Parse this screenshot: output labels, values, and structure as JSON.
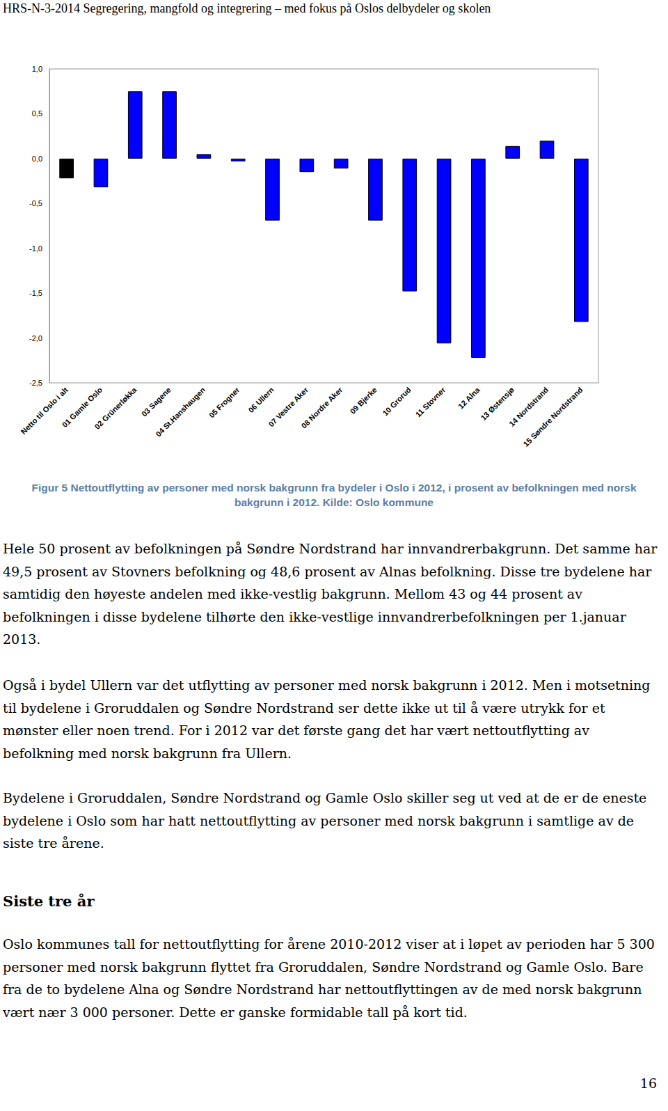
{
  "header": "HRS-N-3-2014 Segregering, mangfold og integrering – med fokus på Oslos delbydeler og skolen",
  "chart_data": {
    "type": "bar",
    "categories": [
      "Netto til Oslo i alt",
      "01 Gamle Oslo",
      "02 Grünerløkka",
      "03 Sagene",
      "04 St.Hanshaugen",
      "05 Frogner",
      "06 Ullern",
      "07 Vestre Aker",
      "08 Nordre Aker",
      "09 Bjerke",
      "10 Grorud",
      "11 Stovner",
      "12 Alna",
      "13 Østensjø",
      "14 Nordstrand",
      "15 Søndre Nordstrand"
    ],
    "values": [
      -0.22,
      -0.32,
      0.75,
      0.75,
      0.05,
      -0.03,
      -0.69,
      -0.15,
      -0.11,
      -0.69,
      -1.48,
      -2.06,
      -2.22,
      0.14,
      0.2,
      -1.82
    ],
    "colors": [
      "#000000",
      "#0000ff",
      "#0000ff",
      "#0000ff",
      "#0000ff",
      "#0000ff",
      "#0000ff",
      "#0000ff",
      "#0000ff",
      "#0000ff",
      "#0000ff",
      "#0000ff",
      "#0000ff",
      "#0000ff",
      "#0000ff",
      "#0000ff"
    ],
    "ylim": [
      -2.5,
      1.0
    ],
    "yticks": [
      {
        "value": -2.5,
        "label": "-2,5"
      },
      {
        "value": -2.0,
        "label": "-2,0"
      },
      {
        "value": -1.5,
        "label": "-1,5"
      },
      {
        "value": -1.0,
        "label": "-1,0"
      },
      {
        "value": -0.5,
        "label": "-0,5"
      },
      {
        "value": 0,
        "label": "0,0"
      },
      {
        "value": 0.5,
        "label": "0,5"
      },
      {
        "value": 1.0,
        "label": "1,0"
      }
    ],
    "grid": false
  },
  "caption": "Figur 5 Nettoutflytting av personer med norsk bakgrunn fra bydeler i Oslo i 2012, i prosent av befolkningen med norsk bakgrunn i 2012. Kilde: Oslo kommune",
  "paragraphs": [
    "Hele 50 prosent av befolkningen på Søndre Nordstrand har innvandrerbakgrunn. Det samme har 49,5 prosent av Stovners befolkning og 48,6 prosent av Alnas befolkning. Disse tre bydelene har samtidig den høyeste andelen med ikke-vestlig bakgrunn. Mellom 43 og 44 prosent av befolkningen i disse bydelene tilhørte den ikke-vestlige innvandrerbefolkningen per 1.januar 2013.",
    "Også i bydel Ullern var det utflytting av personer med norsk bakgrunn i 2012. Men i motsetning til bydelene i Groruddalen og Søndre Nordstrand ser dette ikke ut til å være utrykk for et mønster eller noen trend. For i 2012 var det første gang det har vært nettoutflytting av befolkning med norsk bakgrunn fra Ullern.",
    "Bydelene i Groruddalen, Søndre Nordstrand og Gamle Oslo skiller seg ut ved at de er de eneste bydelene i Oslo som har hatt nettoutflytting av personer med norsk bakgrunn i samtlige av de siste tre årene."
  ],
  "section_heading": "Siste tre år",
  "section_paragraphs": [
    "Oslo kommunes tall for nettoutflytting for årene 2010-2012 viser at i løpet av perioden har 5 300 personer med norsk bakgrunn flyttet fra Groruddalen, Søndre Nordstrand og Gamle Oslo. Bare fra de to bydelene Alna og Søndre Nordstrand har nettoutflyttingen av de med norsk bakgrunn vært nær 3 000 personer. Dette er ganske formidable tall på kort tid."
  ],
  "page_number": 16
}
